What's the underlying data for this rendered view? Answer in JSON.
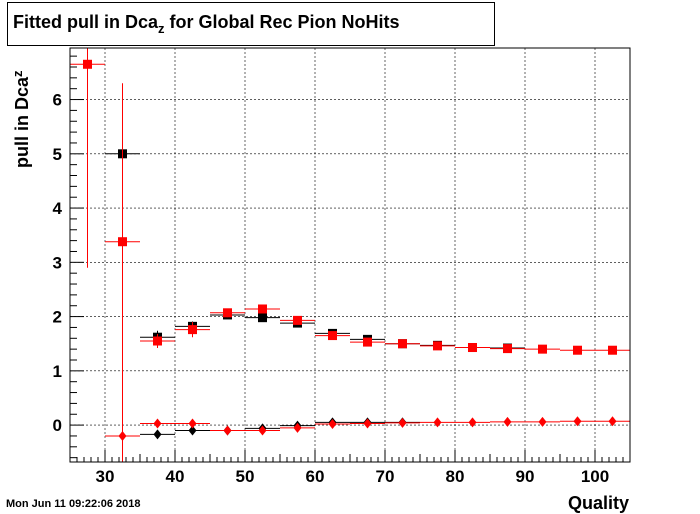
{
  "title": {
    "main": "Fitted pull in Dca",
    "sub": "z",
    "rest": " for Global Rec Pion NoHits"
  },
  "timestamp": "Mon Jun 11 09:22:06 2018",
  "chart_data": {
    "type": "scatter",
    "title": "Fitted pull in Dca_z for Global Rec Pion NoHits",
    "xlabel": "Quality",
    "ylabel": {
      "main": "pull in Dca",
      "sub": "z"
    },
    "xlim": [
      25,
      105
    ],
    "ylim": [
      -0.68,
      6.95
    ],
    "grid": true,
    "xticks": [
      30,
      40,
      50,
      60,
      70,
      80,
      90,
      100
    ],
    "yticks": [
      0,
      1,
      2,
      3,
      4,
      5,
      6
    ],
    "series": [
      {
        "marker": "square",
        "color": "#000000",
        "xerr": 2.5,
        "points": [
          {
            "x": 32.5,
            "y": 5.0,
            "err": 0.0
          },
          {
            "x": 37.5,
            "y": 1.62,
            "err": 0.12
          },
          {
            "x": 42.5,
            "y": 1.82,
            "err": 0.09
          },
          {
            "x": 47.5,
            "y": 2.03,
            "err": 0.06
          },
          {
            "x": 52.5,
            "y": 1.98,
            "err": 0.04
          },
          {
            "x": 57.5,
            "y": 1.88,
            "err": 0.04
          },
          {
            "x": 62.5,
            "y": 1.69,
            "err": 0.03
          },
          {
            "x": 67.5,
            "y": 1.58,
            "err": 0.03
          },
          {
            "x": 72.5,
            "y": 1.5,
            "err": 0.02
          },
          {
            "x": 77.5,
            "y": 1.47,
            "err": 0.02
          },
          {
            "x": 82.5,
            "y": 1.43,
            "err": 0.02
          },
          {
            "x": 87.5,
            "y": 1.42,
            "err": 0.02
          }
        ]
      },
      {
        "marker": "square",
        "color": "#ff0000",
        "xerr": 2.5,
        "points": [
          {
            "x": 27.5,
            "y": 6.65,
            "err": 3.75
          },
          {
            "x": 32.5,
            "y": 3.38,
            "err": 2.88
          },
          {
            "x": 37.5,
            "y": 1.55,
            "err": 0.13
          },
          {
            "x": 42.5,
            "y": 1.76,
            "err": 0.14
          },
          {
            "x": 47.5,
            "y": 2.07,
            "err": 0.08
          },
          {
            "x": 52.5,
            "y": 2.14,
            "err": 0.06
          },
          {
            "x": 57.5,
            "y": 1.93,
            "err": 0.05
          },
          {
            "x": 62.5,
            "y": 1.65,
            "err": 0.04
          },
          {
            "x": 67.5,
            "y": 1.53,
            "err": 0.03
          },
          {
            "x": 72.5,
            "y": 1.5,
            "err": 0.03
          },
          {
            "x": 77.5,
            "y": 1.46,
            "err": 0.02
          },
          {
            "x": 82.5,
            "y": 1.43,
            "err": 0.02
          },
          {
            "x": 87.5,
            "y": 1.41,
            "err": 0.02
          },
          {
            "x": 92.5,
            "y": 1.4,
            "err": 0.02
          },
          {
            "x": 97.5,
            "y": 1.38,
            "err": 0.02
          },
          {
            "x": 102.5,
            "y": 1.38,
            "err": 0.02
          }
        ]
      },
      {
        "marker": "diamond",
        "color": "#000000",
        "xerr": 2.5,
        "points": [
          {
            "x": 37.5,
            "y": -0.17,
            "err": 0.03
          },
          {
            "x": 42.5,
            "y": -0.1,
            "err": 0.03
          },
          {
            "x": 47.5,
            "y": -0.1,
            "err": 0.02
          },
          {
            "x": 52.5,
            "y": -0.06,
            "err": 0.02
          },
          {
            "x": 57.5,
            "y": -0.01,
            "err": 0.02
          },
          {
            "x": 62.5,
            "y": 0.05,
            "err": 0.02
          },
          {
            "x": 67.5,
            "y": 0.05,
            "err": 0.01
          },
          {
            "x": 72.5,
            "y": 0.05,
            "err": 0.01
          }
        ]
      },
      {
        "marker": "diamond",
        "color": "#ff0000",
        "xerr": 2.5,
        "points": [
          {
            "x": 32.5,
            "y": -0.2,
            "err": 6.5
          },
          {
            "x": 37.5,
            "y": 0.03,
            "err": 0.04
          },
          {
            "x": 42.5,
            "y": 0.03,
            "err": 0.04
          },
          {
            "x": 47.5,
            "y": -0.1,
            "err": 0.03
          },
          {
            "x": 52.5,
            "y": -0.1,
            "err": 0.02
          },
          {
            "x": 57.5,
            "y": -0.05,
            "err": 0.02
          },
          {
            "x": 62.5,
            "y": 0.02,
            "err": 0.02
          },
          {
            "x": 67.5,
            "y": 0.03,
            "err": 0.02
          },
          {
            "x": 72.5,
            "y": 0.04,
            "err": 0.01
          },
          {
            "x": 77.5,
            "y": 0.05,
            "err": 0.01
          },
          {
            "x": 82.5,
            "y": 0.05,
            "err": 0.01
          },
          {
            "x": 87.5,
            "y": 0.06,
            "err": 0.01
          },
          {
            "x": 92.5,
            "y": 0.06,
            "err": 0.01
          },
          {
            "x": 97.5,
            "y": 0.07,
            "err": 0.01
          },
          {
            "x": 102.5,
            "y": 0.07,
            "err": 0.01
          }
        ]
      }
    ]
  }
}
